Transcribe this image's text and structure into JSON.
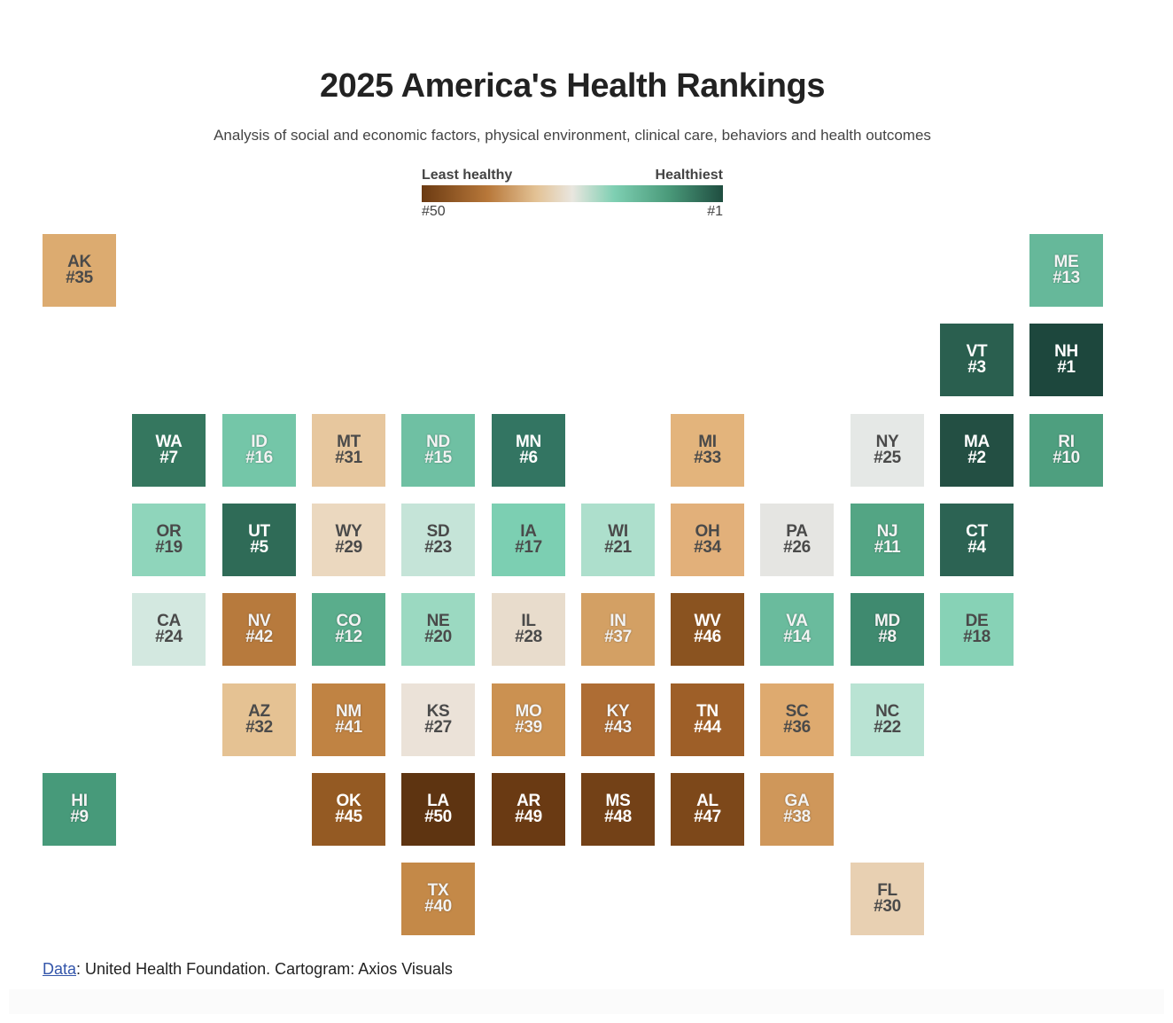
{
  "title": "2025 America's Health Rankings",
  "subtitle": "Analysis of social and economic factors, physical environment, clinical care, behaviors and health outcomes",
  "legend": {
    "left_label": "Least healthy",
    "right_label": "Healthiest",
    "left_end": "#50",
    "right_end": "#1",
    "colors": [
      "#6b3a12",
      "#b8783a",
      "#e3c295",
      "#e9e6df",
      "#7ecfb2",
      "#4a9a7a",
      "#1f4d40"
    ]
  },
  "chart_data": {
    "type": "tile-cartogram",
    "title": "2025 America's Health Rankings",
    "value_name": "rank",
    "states": [
      {
        "abbr": "AK",
        "rank": 35,
        "row": 0,
        "col": 0,
        "color": "#dcab70"
      },
      {
        "abbr": "ME",
        "rank": 13,
        "row": 0,
        "col": 11,
        "color": "#66b89a"
      },
      {
        "abbr": "VT",
        "rank": 3,
        "row": 1,
        "col": 10,
        "color": "#2a5f4f"
      },
      {
        "abbr": "NH",
        "rank": 1,
        "row": 1,
        "col": 11,
        "color": "#1d473d"
      },
      {
        "abbr": "WA",
        "rank": 7,
        "row": 2,
        "col": 1,
        "color": "#35775f"
      },
      {
        "abbr": "ID",
        "rank": 16,
        "row": 2,
        "col": 2,
        "color": "#74c6a8"
      },
      {
        "abbr": "MT",
        "rank": 31,
        "row": 2,
        "col": 3,
        "color": "#e7c79e"
      },
      {
        "abbr": "ND",
        "rank": 15,
        "row": 2,
        "col": 4,
        "color": "#6fc0a3"
      },
      {
        "abbr": "MN",
        "rank": 6,
        "row": 2,
        "col": 5,
        "color": "#337562"
      },
      {
        "abbr": "MI",
        "rank": 33,
        "row": 2,
        "col": 7,
        "color": "#e3b47c"
      },
      {
        "abbr": "NY",
        "rank": 25,
        "row": 2,
        "col": 9,
        "color": "#e5e8e6"
      },
      {
        "abbr": "MA",
        "rank": 2,
        "row": 2,
        "col": 10,
        "color": "#234f43"
      },
      {
        "abbr": "RI",
        "rank": 10,
        "row": 2,
        "col": 11,
        "color": "#4e9f7f"
      },
      {
        "abbr": "OR",
        "rank": 19,
        "row": 3,
        "col": 1,
        "color": "#8fd5bb"
      },
      {
        "abbr": "UT",
        "rank": 5,
        "row": 3,
        "col": 2,
        "color": "#2f6b57"
      },
      {
        "abbr": "WY",
        "rank": 29,
        "row": 3,
        "col": 3,
        "color": "#ebd8bf"
      },
      {
        "abbr": "SD",
        "rank": 23,
        "row": 3,
        "col": 4,
        "color": "#c5e4d8"
      },
      {
        "abbr": "IA",
        "rank": 17,
        "row": 3,
        "col": 5,
        "color": "#7ccfb2"
      },
      {
        "abbr": "WI",
        "rank": 21,
        "row": 3,
        "col": 6,
        "color": "#addfcc"
      },
      {
        "abbr": "OH",
        "rank": 34,
        "row": 3,
        "col": 7,
        "color": "#e2b07a"
      },
      {
        "abbr": "PA",
        "rank": 26,
        "row": 3,
        "col": 8,
        "color": "#e5e5e2"
      },
      {
        "abbr": "NJ",
        "rank": 11,
        "row": 3,
        "col": 9,
        "color": "#53a584"
      },
      {
        "abbr": "CT",
        "rank": 4,
        "row": 3,
        "col": 10,
        "color": "#2c6353"
      },
      {
        "abbr": "CA",
        "rank": 24,
        "row": 4,
        "col": 1,
        "color": "#d3e8e0"
      },
      {
        "abbr": "NV",
        "rank": 42,
        "row": 4,
        "col": 2,
        "color": "#b77a3d"
      },
      {
        "abbr": "CO",
        "rank": 12,
        "row": 4,
        "col": 3,
        "color": "#5aad8c"
      },
      {
        "abbr": "NE",
        "rank": 20,
        "row": 4,
        "col": 4,
        "color": "#9bd9c1"
      },
      {
        "abbr": "IL",
        "rank": 28,
        "row": 4,
        "col": 5,
        "color": "#e8dccc"
      },
      {
        "abbr": "IN",
        "rank": 37,
        "row": 4,
        "col": 6,
        "color": "#d3a064"
      },
      {
        "abbr": "WV",
        "rank": 46,
        "row": 4,
        "col": 7,
        "color": "#8a5320"
      },
      {
        "abbr": "VA",
        "rank": 14,
        "row": 4,
        "col": 8,
        "color": "#6abb9d"
      },
      {
        "abbr": "MD",
        "rank": 8,
        "row": 4,
        "col": 9,
        "color": "#3f8a6f"
      },
      {
        "abbr": "DE",
        "rank": 18,
        "row": 4,
        "col": 10,
        "color": "#87d2b6"
      },
      {
        "abbr": "AZ",
        "rank": 32,
        "row": 5,
        "col": 2,
        "color": "#e5c293"
      },
      {
        "abbr": "NM",
        "rank": 41,
        "row": 5,
        "col": 3,
        "color": "#c08343"
      },
      {
        "abbr": "KS",
        "rank": 27,
        "row": 5,
        "col": 4,
        "color": "#ebe2d8"
      },
      {
        "abbr": "MO",
        "rank": 39,
        "row": 5,
        "col": 5,
        "color": "#cb9151"
      },
      {
        "abbr": "KY",
        "rank": 43,
        "row": 5,
        "col": 6,
        "color": "#ae6d34"
      },
      {
        "abbr": "TN",
        "rank": 44,
        "row": 5,
        "col": 7,
        "color": "#9e5f28"
      },
      {
        "abbr": "SC",
        "rank": 36,
        "row": 5,
        "col": 8,
        "color": "#deaa6f"
      },
      {
        "abbr": "NC",
        "rank": 22,
        "row": 5,
        "col": 9,
        "color": "#b9e3d3"
      },
      {
        "abbr": "HI",
        "rank": 9,
        "row": 6,
        "col": 0,
        "color": "#479a7a"
      },
      {
        "abbr": "OK",
        "rank": 45,
        "row": 6,
        "col": 3,
        "color": "#945a23"
      },
      {
        "abbr": "LA",
        "rank": 50,
        "row": 6,
        "col": 4,
        "color": "#5e3411"
      },
      {
        "abbr": "AR",
        "rank": 49,
        "row": 6,
        "col": 5,
        "color": "#6a3a13"
      },
      {
        "abbr": "MS",
        "rank": 48,
        "row": 6,
        "col": 6,
        "color": "#734117"
      },
      {
        "abbr": "AL",
        "rank": 47,
        "row": 6,
        "col": 7,
        "color": "#7d481a"
      },
      {
        "abbr": "GA",
        "rank": 38,
        "row": 6,
        "col": 8,
        "color": "#cf975a"
      },
      {
        "abbr": "TX",
        "rank": 40,
        "row": 7,
        "col": 4,
        "color": "#c48948"
      },
      {
        "abbr": "FL",
        "rank": 30,
        "row": 7,
        "col": 9,
        "color": "#e8d0b2"
      }
    ]
  },
  "footer": {
    "link_text": "Data",
    "text": ": United Health Foundation. Cartogram: Axios Visuals"
  }
}
